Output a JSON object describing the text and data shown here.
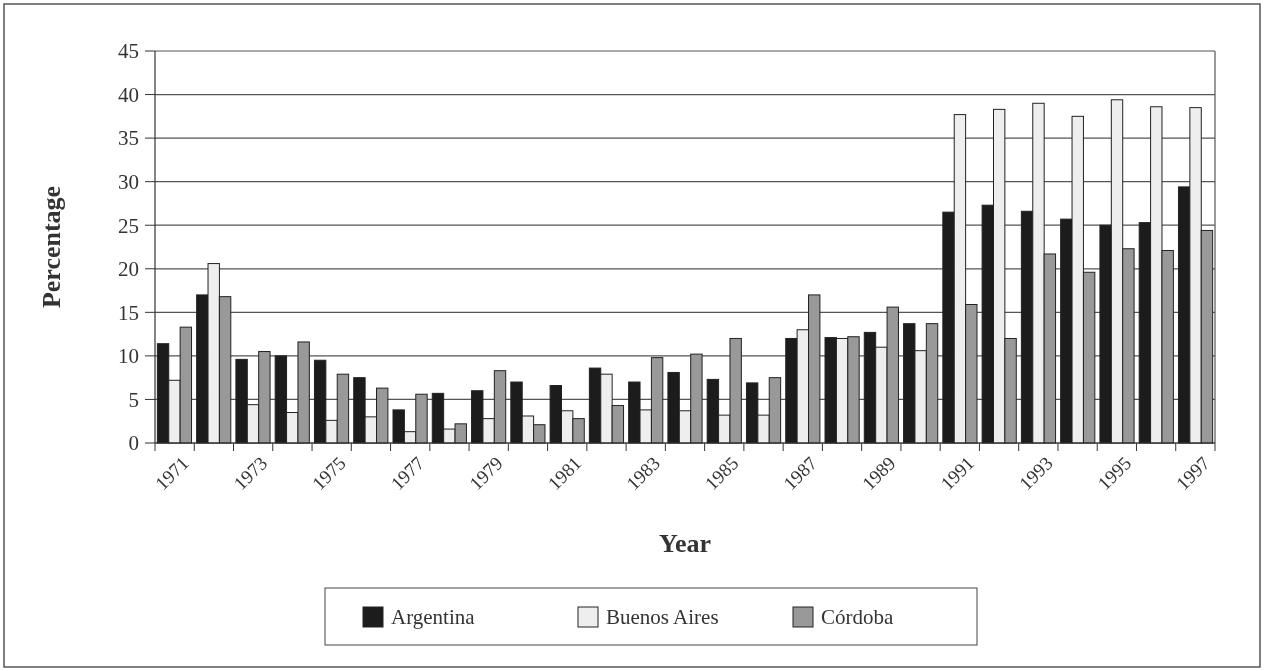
{
  "chart_data": {
    "type": "bar",
    "xlabel": "Year",
    "ylabel": "Percentage",
    "categories": [
      "1971",
      null,
      "1973",
      null,
      "1975",
      null,
      "1977",
      null,
      "1979",
      null,
      "1981",
      null,
      "1983",
      null,
      "1985",
      null,
      "1987",
      null,
      "1989",
      null,
      "1991",
      null,
      "1993",
      null,
      "1995",
      null,
      "1997"
    ],
    "series": [
      {
        "name": "Argentina",
        "color": "#1c1c1c",
        "values": [
          11.4,
          17,
          9.6,
          10,
          9.5,
          7.5,
          3.8,
          5.7,
          6,
          7,
          6.6,
          8.6,
          7,
          8.1,
          7.3,
          6.9,
          12,
          12.1,
          12.7,
          13.7,
          26.5,
          27.3,
          26.6,
          25.7,
          25,
          25.3,
          29.4
        ]
      },
      {
        "name": "Buenos Aires",
        "color": "#eeeeee",
        "values": [
          7.2,
          20.6,
          4.4,
          3.5,
          2.6,
          3,
          1.3,
          1.6,
          2.8,
          3.1,
          3.7,
          7.9,
          3.8,
          3.7,
          3.2,
          3.2,
          13,
          12,
          11,
          10.6,
          37.7,
          38.3,
          39,
          37.5,
          39.4,
          38.6,
          38.5
        ]
      },
      {
        "name": "Córdoba",
        "color": "#999999",
        "values": [
          13.3,
          16.8,
          10.5,
          11.6,
          7.9,
          6.3,
          5.6,
          2.2,
          8.3,
          2.1,
          2.8,
          4.3,
          9.8,
          10.2,
          12,
          7.5,
          17,
          12.2,
          15.6,
          13.7,
          15.9,
          12,
          21.7,
          19.6,
          22.3,
          22.1,
          24.4
        ]
      }
    ],
    "ylim": [
      0,
      45
    ],
    "yticks": [
      0,
      5,
      10,
      15,
      20,
      25,
      30,
      35,
      40,
      45
    ],
    "grid": "y",
    "legend": "bottom"
  }
}
